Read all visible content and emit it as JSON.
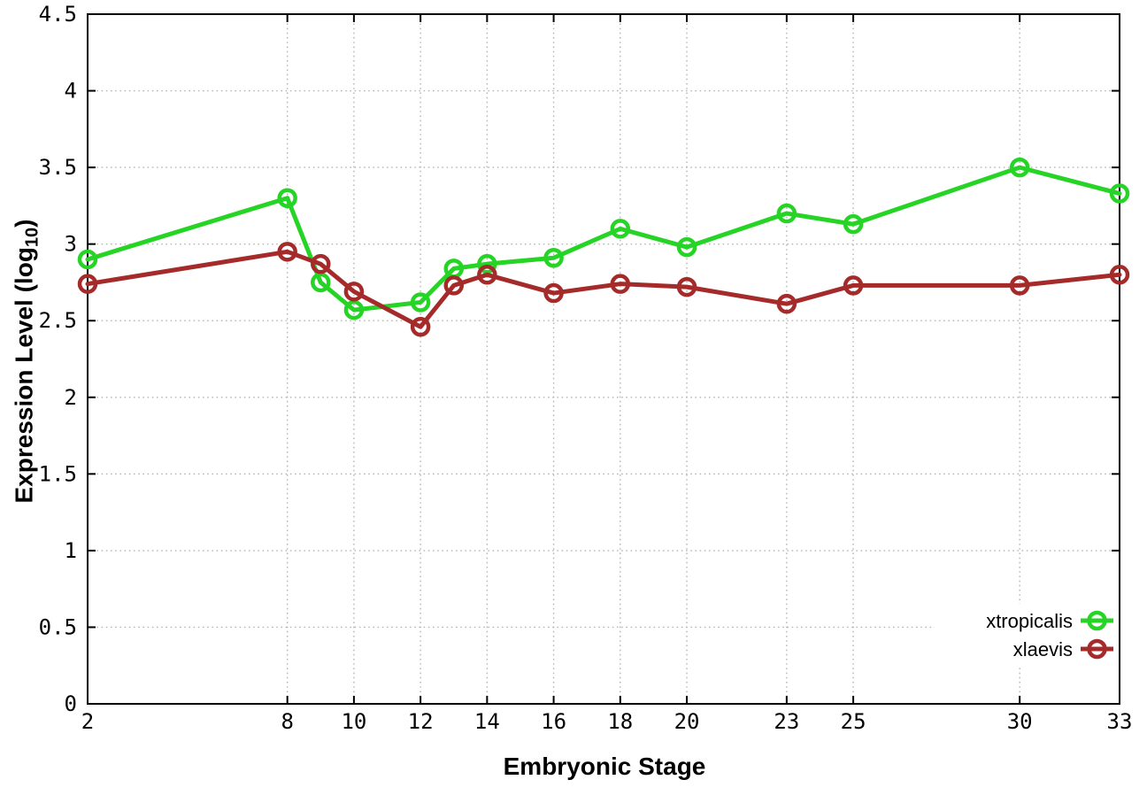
{
  "figure": {
    "background": "#ffffff",
    "ylabel_parts": {
      "main": "Expression Level (log",
      "sub": "10",
      "end": ")"
    }
  },
  "chart_data": {
    "type": "line",
    "title": "",
    "xlabel": "Embryonic Stage",
    "ylabel": "Expression Level (log10)",
    "xlim": [
      2,
      33
    ],
    "ylim": [
      0,
      4.5
    ],
    "x_ticks": [
      2,
      8,
      10,
      12,
      14,
      16,
      18,
      20,
      23,
      25,
      30,
      33
    ],
    "y_ticks": [
      0,
      0.5,
      1,
      1.5,
      2,
      2.5,
      3,
      3.5,
      4,
      4.5
    ],
    "grid": true,
    "grid_style": "dotted",
    "legend_position": "bottom-right",
    "axis_color": "#000000",
    "grid_color": "#b5b5b5",
    "x": [
      2,
      8,
      9,
      10,
      12,
      13,
      14,
      16,
      18,
      20,
      23,
      25,
      30,
      33
    ],
    "series": [
      {
        "name": "xtropicalis",
        "color": "#25d425",
        "marker": "open-circle",
        "values": [
          2.9,
          3.3,
          2.75,
          2.57,
          2.62,
          2.84,
          2.87,
          2.91,
          3.1,
          2.98,
          3.2,
          3.13,
          3.5,
          3.33
        ]
      },
      {
        "name": "xlaevis",
        "color": "#a52a2a",
        "marker": "open-circle",
        "values": [
          2.74,
          2.95,
          2.87,
          2.69,
          2.46,
          2.73,
          2.8,
          2.68,
          2.74,
          2.72,
          2.61,
          2.73,
          2.73,
          2.8
        ]
      }
    ]
  }
}
